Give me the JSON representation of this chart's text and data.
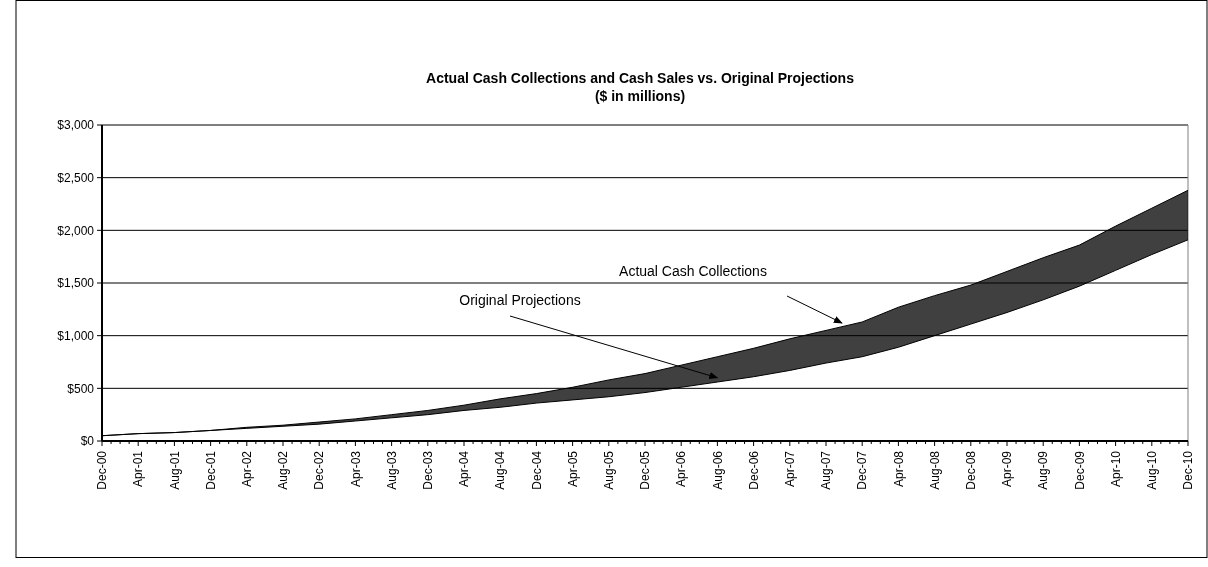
{
  "chart_data": {
    "type": "line",
    "title": "Actual Cash Collections and Cash Sales vs. Original Projections",
    "subtitle": "($ in millions)",
    "categories": [
      "Dec-00",
      "Apr-01",
      "Aug-01",
      "Dec-01",
      "Apr-02",
      "Aug-02",
      "Dec-02",
      "Apr-03",
      "Aug-03",
      "Dec-03",
      "Apr-04",
      "Aug-04",
      "Dec-04",
      "Apr-05",
      "Aug-05",
      "Dec-05",
      "Apr-06",
      "Aug-06",
      "Dec-06",
      "Apr-07",
      "Aug-07",
      "Dec-07",
      "Apr-08",
      "Aug-08",
      "Dec-08",
      "Apr-09",
      "Aug-09",
      "Dec-09",
      "Apr-10",
      "Aug-10",
      "Dec-10"
    ],
    "series": [
      {
        "color": "#000000",
        "values": [
          50,
          70,
          80,
          100,
          130,
          150,
          180,
          210,
          250,
          290,
          340,
          400,
          450,
          510,
          580,
          640,
          720,
          800,
          880,
          970,
          1050,
          1130,
          1270,
          1380,
          1480,
          1610,
          1740,
          1860,
          2040,
          2210,
          2380
        ],
        "lower": [
          50,
          70,
          80,
          100,
          120,
          140,
          160,
          190,
          220,
          250,
          290,
          320,
          360,
          390,
          420,
          460,
          510,
          560,
          610,
          670,
          740,
          800,
          890,
          1000,
          1110,
          1220,
          1340,
          1470,
          1620,
          1770,
          1910
        ],
        "upper": [
          50,
          70,
          80,
          100,
          130,
          150,
          180,
          210,
          250,
          290,
          340,
          400,
          450,
          510,
          580,
          640,
          720,
          800,
          880,
          970,
          1050,
          1130,
          1270,
          1380,
          1480,
          1610,
          1740,
          1860,
          2040,
          2210,
          2380
        ]
      },
      {
        "color": "#000000",
        "values": [
          50,
          70,
          80,
          100,
          120,
          140,
          160,
          190,
          220,
          250,
          290,
          320,
          360,
          390,
          420,
          460,
          510,
          560,
          610,
          670,
          740,
          800,
          890,
          1000,
          1110,
          1220,
          1340,
          1470,
          1620,
          1770,
          1910
        ]
      }
    ],
    "annotations": [
      "Actual Cash Collections",
      {
        "text": "Original Projections",
        "x": "Aug-06",
        "y": 600
      }
    ],
    "ylim": [
      0,
      3000
    ],
    "yticks": [
      {
        "value": 0,
        "label": "$0"
      },
      {
        "value": 500,
        "label": "$500"
      },
      {
        "value": 1000,
        "label": "$1,000"
      },
      {
        "value": 1500,
        "label": "$1,500"
      },
      {
        "value": 2000,
        "label": "$2,000"
      },
      {
        "value": 2500,
        "label": "$2,500"
      },
      {
        "value": 3000,
        "label": "$3,000"
      }
    ],
    "grid": "y",
    "marker": "none",
    "line_style": "solid"
  }
}
